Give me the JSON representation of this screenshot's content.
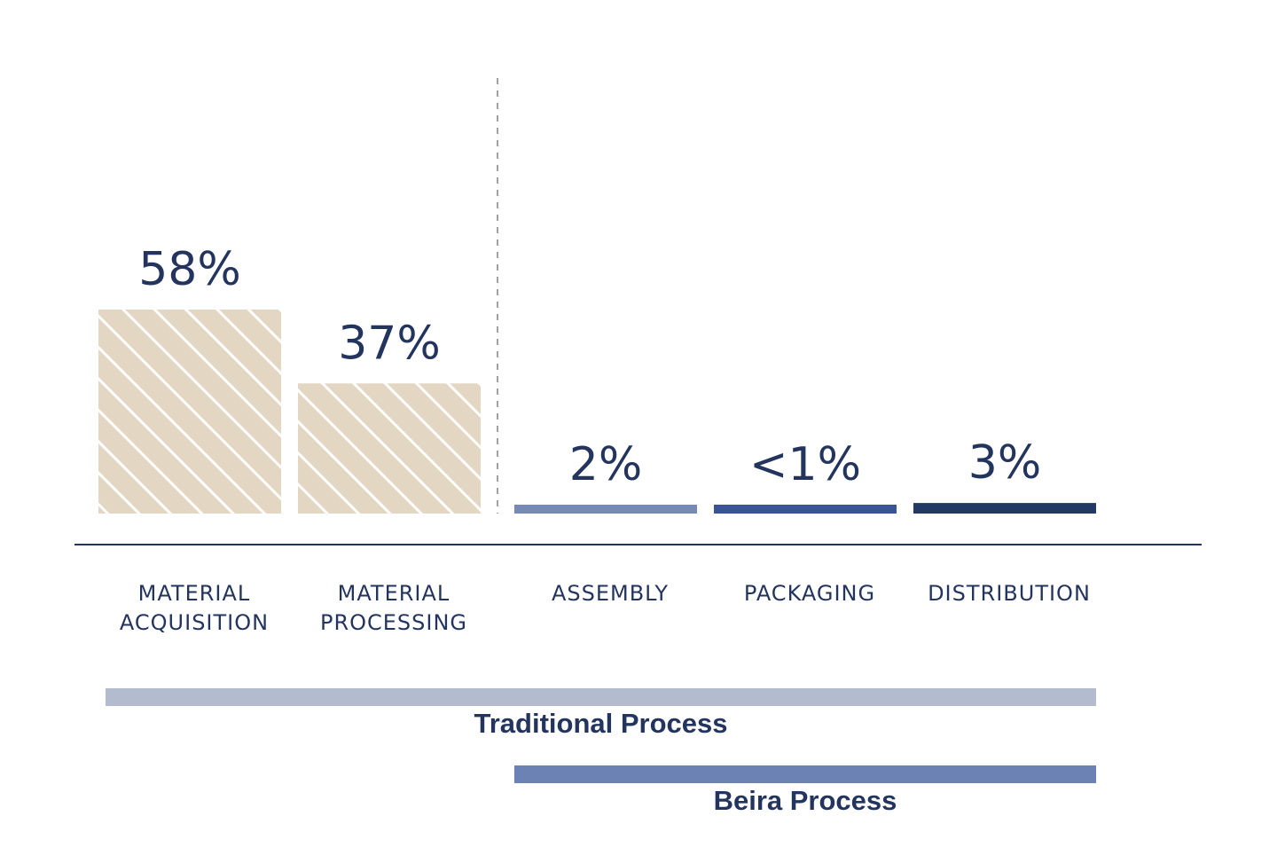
{
  "chart_data": {
    "type": "bar",
    "categories": [
      [
        "MATERIAL",
        "ACQUISITION"
      ],
      [
        "MATERIAL",
        "PROCESSING"
      ],
      [
        "ASSEMBLY"
      ],
      [
        "PACKAGING"
      ],
      [
        "DISTRIBUTION"
      ]
    ],
    "values": [
      58,
      37,
      2,
      0.5,
      3
    ],
    "value_labels": [
      "58%",
      "37%",
      "2%",
      "<1%",
      "3%"
    ],
    "bar_colors": [
      "#e3d6c2",
      "#e3d6c2",
      "#7689b7",
      "#3a5395",
      "#233965"
    ],
    "bar_patterns": [
      "hatched",
      "hatched",
      "solid",
      "solid",
      "solid"
    ],
    "divider_after_index": 1,
    "ranges": [
      {
        "label": "Traditional Process",
        "from_index": 0,
        "to_index": 4,
        "color": "#b3bccf"
      },
      {
        "label": "Beira Process",
        "from_index": 2,
        "to_index": 4,
        "color": "#6c82b4"
      }
    ],
    "title": "",
    "xlabel": "",
    "ylabel": "",
    "grid": false
  },
  "colors": {
    "text": "#23355f",
    "axis": "#23355f",
    "divider": "#a0a0a0"
  }
}
